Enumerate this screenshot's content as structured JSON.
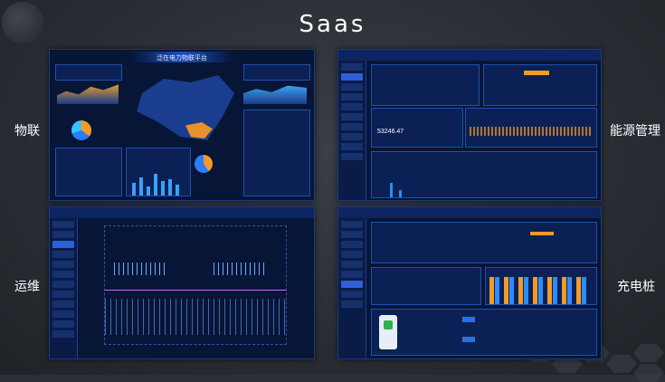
{
  "page_title": "Saas",
  "labels": {
    "iot": "物联",
    "energy": "能源管理",
    "ops": "运维",
    "charging": "充电桩"
  },
  "shot_iot": {
    "title": "泛在电力物联平台"
  },
  "shot_energy": {
    "value": "53246.47"
  },
  "colors": {
    "accent": "#1f6dff",
    "orange": "#f59a23",
    "dark": "#071536"
  }
}
